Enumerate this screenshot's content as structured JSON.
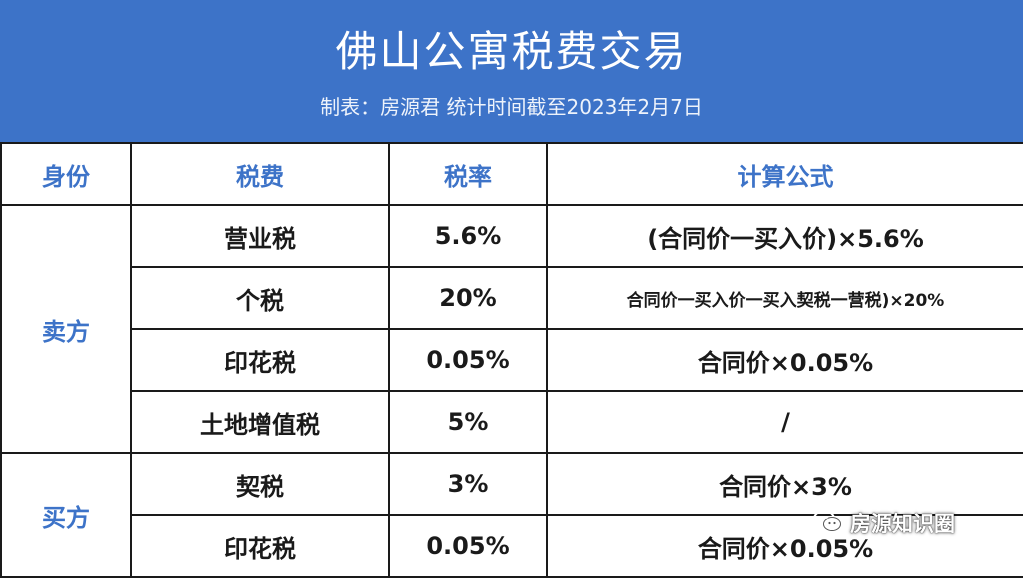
{
  "header": {
    "title": "佛山公寓税费交易",
    "subtitle": "制表：房源君 统计时间截至2023年2月7日"
  },
  "table": {
    "columns": [
      "身份",
      "税费",
      "税率",
      "计算公式"
    ],
    "groups": [
      {
        "party": "卖方",
        "rows": [
          {
            "tax": "营业税",
            "rate": "5.6%",
            "formula": "(合同价一买入价)×5.6%"
          },
          {
            "tax": "个税",
            "rate": "20%",
            "formula": "合同价一买入价一买入契税一营税)×20%"
          },
          {
            "tax": "印花税",
            "rate": "0.05%",
            "formula": "合同价×0.05%"
          },
          {
            "tax": "土地增值税",
            "rate": "5%",
            "formula": "/"
          }
        ]
      },
      {
        "party": "买方",
        "rows": [
          {
            "tax": "契税",
            "rate": "3%",
            "formula": "合同价×3%"
          },
          {
            "tax": "印花税",
            "rate": "0.05%",
            "formula": "合同价×0.05%"
          }
        ]
      }
    ]
  },
  "watermark": {
    "icon": "wechat-icon",
    "text": "房源知识圈"
  },
  "colors": {
    "header_bg": "#3d73c8",
    "accent_text": "#3d73c8",
    "body_text": "#1a1a1a"
  }
}
